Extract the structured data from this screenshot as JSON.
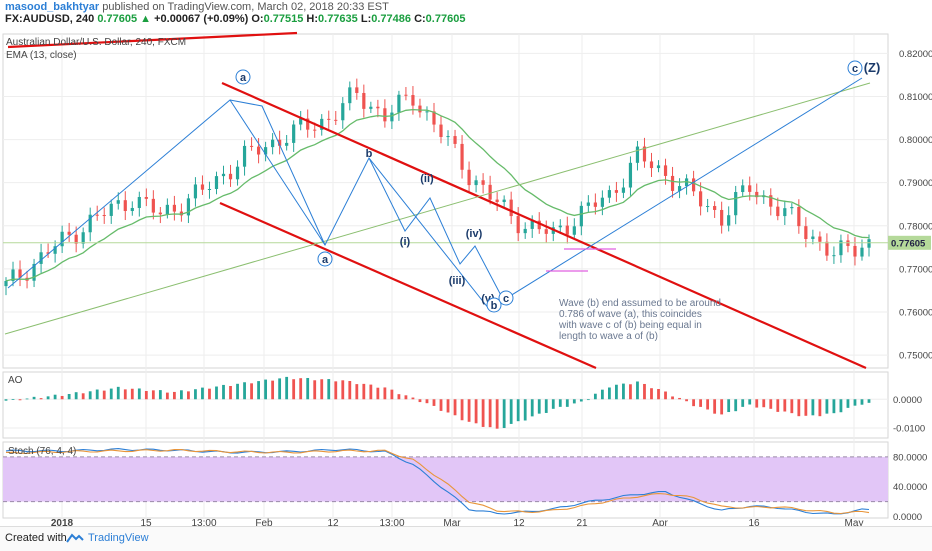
{
  "header": {
    "author": "masood_bakhtyar",
    "published": "published on TradingView.com, March 02, 2018 20:33 EST",
    "symbol": "FX:AUDUSD, 240",
    "last": "0.77605",
    "arrow": "▲",
    "change": "+0.00067 (+0.09%)",
    "o_label": "O:",
    "o": "0.77515",
    "h_label": "H:",
    "h": "0.77635",
    "l_label": "L:",
    "l": "0.77486",
    "c_label": "C:",
    "c": "0.77605"
  },
  "legend": {
    "main": "Australian Dollar/U.S. Dollar, 240, FXCM",
    "ema": "EMA (13, close)",
    "ao": "AO",
    "stoch": "Stoch (76, 4, 4)"
  },
  "footer": {
    "created": "Created with",
    "brand": "TradingView"
  },
  "colors": {
    "up": "#26a69a",
    "down": "#ef5350",
    "ema": "#66bb6a",
    "channel": "#e01010",
    "wave": "#2c7fd6",
    "fib": "#8bbf70",
    "stoch_k": "#2c7fd6",
    "stoch_d": "#e8953a",
    "stoch_band": "#e2c6f7",
    "price_tag": "#b5d99a",
    "magenta": "#e060e0"
  },
  "annotation": "Wave (b) end assumed to be around 0.786 of wave (a), this coincides with wave c of (b) being equal in length to wave a of (b)",
  "wave_labels": [
    "a",
    "a",
    "b",
    "(i)",
    "(ii)",
    "(iii)",
    "(iv)",
    "(v)",
    "b",
    "c",
    "c",
    "(Z)"
  ],
  "chart_data": [
    {
      "type": "candlestick",
      "title": "Australian Dollar/U.S. Dollar, 240, FXCM",
      "x_ticks": [
        "2018",
        "15",
        "13:00",
        "Feb",
        "12",
        "13:00",
        "Mar",
        "12",
        "21",
        "Apr",
        "16",
        "May"
      ],
      "y_ticks": [
        "0.82000",
        "0.81000",
        "0.80000",
        "0.79000",
        "0.78000",
        "0.77000",
        "0.76000",
        "0.75000"
      ],
      "ylim": [
        0.747,
        0.8245
      ],
      "last_price": "0.77605",
      "overlays": [
        {
          "name": "EMA (13, close)",
          "type": "line"
        }
      ],
      "close_path": [
        [
          0,
          0.766
        ],
        [
          3,
          0.774
        ],
        [
          6,
          0.781
        ],
        [
          9,
          0.7865
        ],
        [
          11,
          0.7825
        ],
        [
          14,
          0.788
        ],
        [
          17,
          0.796
        ],
        [
          20,
          0.801
        ],
        [
          23,
          0.805
        ],
        [
          25,
          0.8105
        ],
        [
          27,
          0.8055
        ],
        [
          29,
          0.81
        ],
        [
          31,
          0.8015
        ],
        [
          33,
          0.792
        ],
        [
          35,
          0.785
        ],
        [
          37,
          0.78
        ],
        [
          39,
          0.778
        ],
        [
          41,
          0.783
        ],
        [
          43,
          0.787
        ],
        [
          45,
          0.796
        ],
        [
          47,
          0.792
        ],
        [
          49,
          0.787
        ],
        [
          51,
          0.782
        ],
        [
          53,
          0.789
        ],
        [
          55,
          0.784
        ],
        [
          57,
          0.779
        ],
        [
          59,
          0.773
        ],
        [
          61,
          0.776
        ]
      ],
      "total_bars": 124
    },
    {
      "type": "bar",
      "title": "AO",
      "y_ticks": [
        "0.0000",
        "-0.0100"
      ],
      "ylim": [
        -0.0135,
        0.0095
      ],
      "path": [
        [
          0,
          -0.0005
        ],
        [
          4,
          0.0015
        ],
        [
          8,
          0.004
        ],
        [
          12,
          0.0025
        ],
        [
          16,
          0.005
        ],
        [
          20,
          0.0075
        ],
        [
          24,
          0.0065
        ],
        [
          27,
          0.004
        ],
        [
          30,
          -0.0015
        ],
        [
          33,
          -0.008
        ],
        [
          35,
          -0.0105
        ],
        [
          37,
          -0.007
        ],
        [
          39,
          -0.0035
        ],
        [
          41,
          -0.001
        ],
        [
          43,
          0.0045
        ],
        [
          45,
          0.006
        ],
        [
          47,
          0.0025
        ],
        [
          49,
          -0.002
        ],
        [
          51,
          -0.0055
        ],
        [
          53,
          -0.002
        ],
        [
          55,
          -0.004
        ],
        [
          57,
          -0.006
        ],
        [
          59,
          -0.005
        ],
        [
          61,
          -0.0015
        ]
      ]
    },
    {
      "type": "line",
      "title": "Stoch (76, 4, 4)",
      "y_ticks": [
        "80.0000",
        "40.0000",
        "0.0000"
      ],
      "ylim": [
        -2,
        100
      ],
      "band": [
        20,
        80
      ],
      "series": [
        {
          "name": "K",
          "path": [
            [
              0,
              88
            ],
            [
              4,
              88
            ],
            [
              8,
              90
            ],
            [
              12,
              89
            ],
            [
              16,
              86
            ],
            [
              20,
              87
            ],
            [
              24,
              90
            ],
            [
              27,
              87
            ],
            [
              29,
              70
            ],
            [
              31,
              40
            ],
            [
              33,
              10
            ],
            [
              35,
              4
            ],
            [
              37,
              6
            ],
            [
              39,
              10
            ],
            [
              41,
              18
            ],
            [
              43,
              24
            ],
            [
              45,
              30
            ],
            [
              47,
              33
            ],
            [
              49,
              20
            ],
            [
              51,
              8
            ],
            [
              53,
              14
            ],
            [
              55,
              12
            ],
            [
              57,
              6
            ],
            [
              59,
              3
            ],
            [
              61,
              9
            ]
          ]
        },
        {
          "name": "D",
          "path": [
            [
              0,
              85
            ],
            [
              4,
              87
            ],
            [
              8,
              88
            ],
            [
              12,
              89
            ],
            [
              16,
              87
            ],
            [
              20,
              86
            ],
            [
              24,
              88
            ],
            [
              27,
              88
            ],
            [
              29,
              76
            ],
            [
              31,
              50
            ],
            [
              33,
              20
            ],
            [
              35,
              8
            ],
            [
              37,
              6
            ],
            [
              39,
              8
            ],
            [
              41,
              14
            ],
            [
              43,
              21
            ],
            [
              45,
              27
            ],
            [
              47,
              31
            ],
            [
              49,
              25
            ],
            [
              51,
              13
            ],
            [
              53,
              12
            ],
            [
              55,
              13
            ],
            [
              57,
              9
            ],
            [
              59,
              5
            ],
            [
              61,
              6
            ]
          ]
        }
      ]
    }
  ]
}
